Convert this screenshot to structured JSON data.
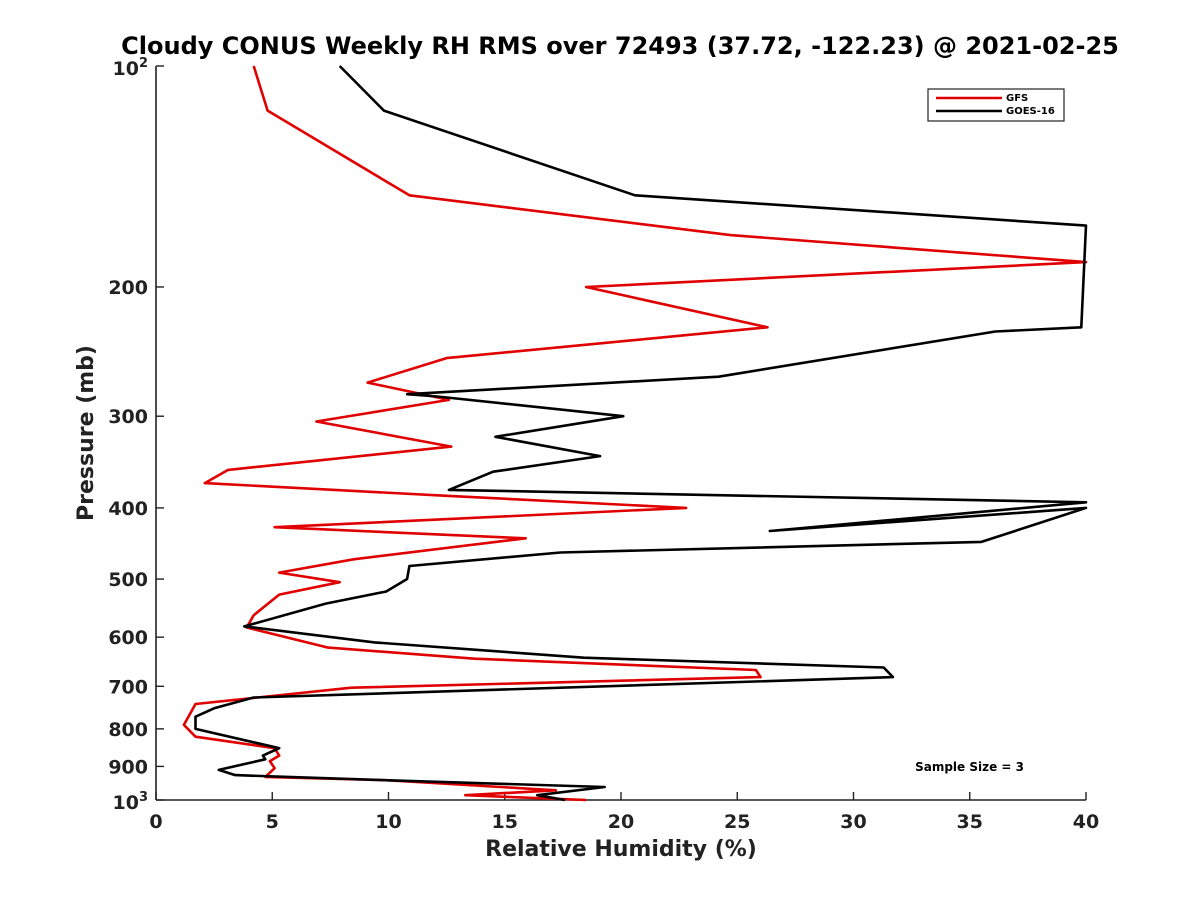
{
  "chart_data": {
    "type": "line",
    "title": "Cloudy CONUS Weekly RH RMS over 72493 (37.72, -122.23) @ 2021-02-25",
    "xlabel": "Relative Humidity (%)",
    "ylabel": "Pressure (mb)",
    "xlim": [
      0,
      40
    ],
    "ylim": [
      100,
      1000
    ],
    "y_scale": "log",
    "y_reversed": true,
    "x_ticks": [
      0,
      5,
      10,
      15,
      20,
      25,
      30,
      35,
      40
    ],
    "x_tick_labels": [
      "0",
      "5",
      "10",
      "15",
      "20",
      "25",
      "30",
      "35",
      "40"
    ],
    "y_ticks": [
      200,
      300,
      400,
      500,
      600,
      700,
      800,
      900
    ],
    "y_tick_labels": [
      "200",
      "300",
      "400",
      "500",
      "600",
      "700",
      "800",
      "900"
    ],
    "y_end_ticks": [
      {
        "value": 100,
        "base": "10",
        "exp": "2"
      },
      {
        "value": 1000,
        "base": "10",
        "exp": "3"
      }
    ],
    "grid": false,
    "legend_position": "top-right",
    "annotation": "Sample Size = 3",
    "series": [
      {
        "name": "GFS",
        "color": "#e00000",
        "x": [
          4.2,
          4.8,
          10.9,
          24.7,
          40,
          18.5,
          26.3,
          12.5,
          9.1,
          12.6,
          6.9,
          12.7,
          3.1,
          2.1,
          12.4,
          22.8,
          5.1,
          15.9,
          8.5,
          5.3,
          7.9,
          5.3,
          4.2,
          3.9,
          7.4,
          13.7,
          25.8,
          26.0,
          8.4,
          1.7,
          1.2,
          1.7,
          5.1,
          5.3,
          4.9,
          5.1,
          4.7,
          10.0,
          17.2,
          13.3,
          18.5
        ],
        "y": [
          100,
          115,
          150,
          170,
          185,
          200,
          227,
          250,
          270,
          285,
          305,
          330,
          355,
          370,
          385,
          400,
          425,
          440,
          470,
          490,
          505,
          525,
          560,
          582,
          620,
          642,
          665,
          680,
          703,
          740,
          790,
          820,
          850,
          870,
          885,
          905,
          930,
          940,
          970,
          985,
          1000
        ]
      },
      {
        "name": "GOES-16",
        "color": "#000000",
        "x": [
          7.9,
          9.8,
          20.6,
          40,
          39.8,
          36.1,
          24.2,
          10.8,
          12.1,
          20.1,
          14.6,
          19.1,
          14.5,
          12.6,
          40,
          26.4,
          40,
          35.5,
          17.4,
          10.9,
          10.8,
          9.9,
          7.3,
          3.8,
          9.4,
          18.4,
          31.3,
          31.7,
          4.2,
          2.5,
          1.7,
          1.7,
          5.3,
          4.6,
          4.7,
          2.7,
          3.4,
          10.0,
          19.3,
          16.4,
          17.6
        ],
        "y": [
          100,
          115,
          150,
          165,
          227,
          230,
          265,
          280,
          282,
          300,
          320,
          340,
          357,
          378,
          393,
          430,
          400,
          445,
          460,
          480,
          500,
          520,
          540,
          580,
          610,
          640,
          660,
          680,
          725,
          750,
          770,
          800,
          850,
          870,
          880,
          910,
          925,
          940,
          960,
          985,
          1000
        ]
      }
    ]
  }
}
